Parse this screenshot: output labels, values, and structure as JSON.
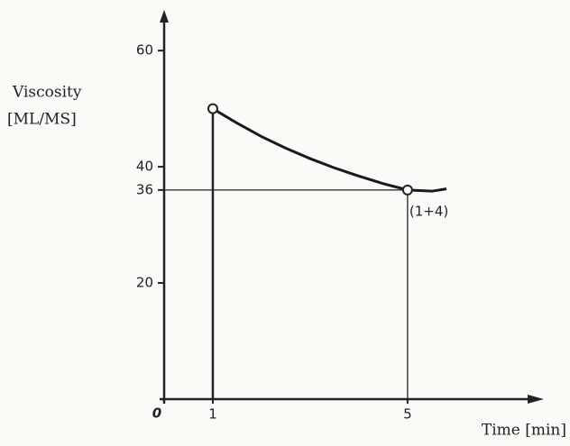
{
  "chart_data": {
    "type": "line",
    "ylabel": [
      "Viscosity",
      "[ML/MS]"
    ],
    "xlabel": "Time [min]",
    "annotation": "(1+4)",
    "x": [
      1,
      1.5,
      2,
      2.5,
      3,
      3.5,
      4,
      4.5,
      5,
      5.5,
      5.8
    ],
    "series": [
      {
        "color": "#1a1a1a",
        "values": [
          50,
          47.5,
          45.2,
          43.2,
          41.4,
          39.8,
          38.4,
          37.1,
          36,
          35.8,
          36.2
        ]
      }
    ],
    "xlim": [
      0,
      7.8
    ],
    "xticks": [
      1,
      5
    ],
    "ylim": [
      0,
      67
    ],
    "yticks": [
      0,
      20,
      36,
      40,
      60
    ]
  }
}
